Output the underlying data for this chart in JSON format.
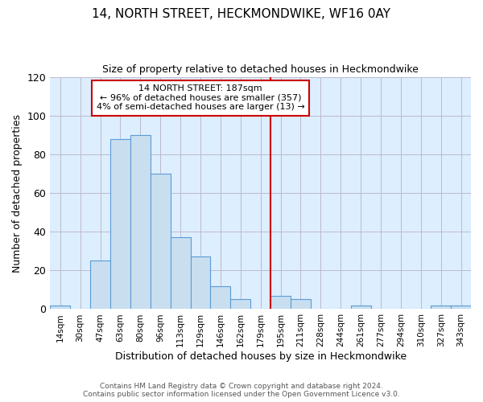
{
  "title": "14, NORTH STREET, HECKMONDWIKE, WF16 0AY",
  "subtitle": "Size of property relative to detached houses in Heckmondwike",
  "xlabel": "Distribution of detached houses by size in Heckmondwike",
  "ylabel": "Number of detached properties",
  "bar_labels": [
    "14sqm",
    "30sqm",
    "47sqm",
    "63sqm",
    "80sqm",
    "96sqm",
    "113sqm",
    "129sqm",
    "146sqm",
    "162sqm",
    "179sqm",
    "195sqm",
    "211sqm",
    "228sqm",
    "244sqm",
    "261sqm",
    "277sqm",
    "294sqm",
    "310sqm",
    "327sqm",
    "343sqm"
  ],
  "bar_heights": [
    2,
    0,
    25,
    88,
    90,
    70,
    37,
    27,
    12,
    5,
    0,
    7,
    5,
    0,
    0,
    2,
    0,
    0,
    0,
    2,
    2
  ],
  "bar_color": "#c9dff0",
  "bar_edge_color": "#5b9bd5",
  "plot_bg_color": "#ddeeff",
  "ylim": [
    0,
    120
  ],
  "yticks": [
    0,
    20,
    40,
    60,
    80,
    100,
    120
  ],
  "vline_color": "#cc0000",
  "annotation_title": "14 NORTH STREET: 187sqm",
  "annotation_line1": "← 96% of detached houses are smaller (357)",
  "annotation_line2": "4% of semi-detached houses are larger (13) →",
  "annotation_box_edge": "#cc0000",
  "footer_line1": "Contains HM Land Registry data © Crown copyright and database right 2024.",
  "footer_line2": "Contains public sector information licensed under the Open Government Licence v3.0.",
  "background_color": "#ffffff",
  "grid_color": "#bbbbcc"
}
